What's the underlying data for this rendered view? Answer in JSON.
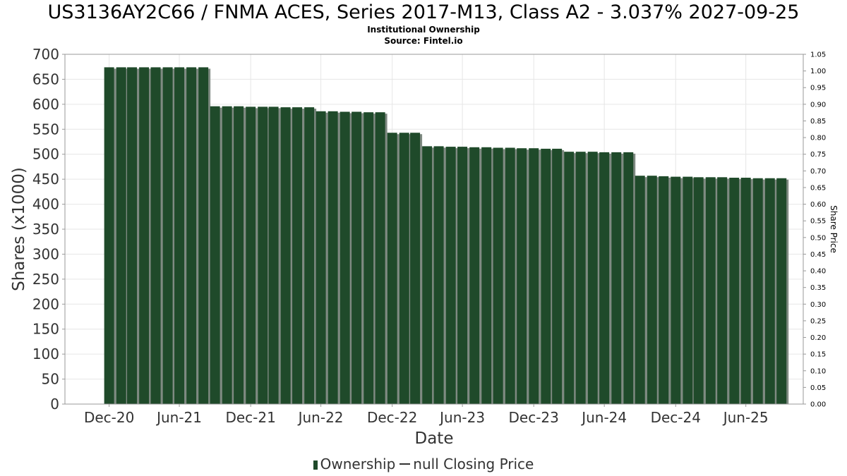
{
  "title": "US3136AY2C66 / FNMA ACES, Series 2017-M13, Class A2 - 3.037% 2027-09-25",
  "subtitle_1": "Institutional Ownership",
  "subtitle_2": "Source: Fintel.io",
  "legend": {
    "ownership": "Ownership",
    "price": "null Closing Price"
  },
  "colors": {
    "bar": "#1f4a2a",
    "bar_shadow": "#7f8a82",
    "grid": "#e6e6e6",
    "axis_text": "#333333"
  },
  "chart_data": {
    "type": "bar",
    "xlabel": "Date",
    "ylabel": "Shares (x1000)",
    "y2label": "Share Price",
    "ylim": [
      0,
      700
    ],
    "y2lim": [
      0,
      1.05
    ],
    "grid": true,
    "legend_position": "bottom",
    "yticks": [
      "0",
      "50",
      "100",
      "150",
      "200",
      "250",
      "300",
      "350",
      "400",
      "450",
      "500",
      "550",
      "600",
      "650",
      "700"
    ],
    "y2ticks": [
      "0.00",
      "0.05",
      "0.10",
      "0.15",
      "0.20",
      "0.25",
      "0.30",
      "0.35",
      "0.40",
      "0.45",
      "0.50",
      "0.55",
      "0.60",
      "0.65",
      "0.70",
      "0.75",
      "0.80",
      "0.85",
      "0.90",
      "0.95",
      "1.00",
      "1.05"
    ],
    "xticks": [
      {
        "label": "Dec-20",
        "date": "2020-12-31"
      },
      {
        "label": "Jun-21",
        "date": "2021-06-30"
      },
      {
        "label": "Dec-21",
        "date": "2021-12-31"
      },
      {
        "label": "Jun-22",
        "date": "2022-06-30"
      },
      {
        "label": "Dec-22",
        "date": "2022-12-31"
      },
      {
        "label": "Jun-23",
        "date": "2023-06-30"
      },
      {
        "label": "Dec-23",
        "date": "2023-12-31"
      },
      {
        "label": "Jun-24",
        "date": "2024-06-30"
      },
      {
        "label": "Dec-24",
        "date": "2024-12-31"
      },
      {
        "label": "Jun-25",
        "date": "2025-06-30"
      }
    ],
    "x_range": [
      "2020-09-08",
      "2025-11-25"
    ],
    "series": [
      {
        "name": "Ownership",
        "points": [
          {
            "x": "2020-12-31",
            "y": 674
          },
          {
            "x": "2021-01-31",
            "y": 674
          },
          {
            "x": "2021-02-28",
            "y": 674
          },
          {
            "x": "2021-03-31",
            "y": 674
          },
          {
            "x": "2021-04-30",
            "y": 674
          },
          {
            "x": "2021-05-31",
            "y": 674
          },
          {
            "x": "2021-06-30",
            "y": 674
          },
          {
            "x": "2021-07-31",
            "y": 674
          },
          {
            "x": "2021-08-31",
            "y": 674
          },
          {
            "x": "2021-09-30",
            "y": 596
          },
          {
            "x": "2021-10-31",
            "y": 596
          },
          {
            "x": "2021-11-30",
            "y": 596
          },
          {
            "x": "2021-12-31",
            "y": 595
          },
          {
            "x": "2022-01-31",
            "y": 595
          },
          {
            "x": "2022-02-28",
            "y": 595
          },
          {
            "x": "2022-03-31",
            "y": 594
          },
          {
            "x": "2022-04-30",
            "y": 594
          },
          {
            "x": "2022-05-31",
            "y": 594
          },
          {
            "x": "2022-06-30",
            "y": 586
          },
          {
            "x": "2022-07-31",
            "y": 586
          },
          {
            "x": "2022-08-31",
            "y": 585
          },
          {
            "x": "2022-09-30",
            "y": 585
          },
          {
            "x": "2022-10-31",
            "y": 584
          },
          {
            "x": "2022-11-30",
            "y": 584
          },
          {
            "x": "2022-12-31",
            "y": 543
          },
          {
            "x": "2023-01-31",
            "y": 543
          },
          {
            "x": "2023-02-28",
            "y": 543
          },
          {
            "x": "2023-03-31",
            "y": 516
          },
          {
            "x": "2023-04-30",
            "y": 516
          },
          {
            "x": "2023-05-31",
            "y": 515
          },
          {
            "x": "2023-06-30",
            "y": 515
          },
          {
            "x": "2023-07-31",
            "y": 514
          },
          {
            "x": "2023-08-31",
            "y": 514
          },
          {
            "x": "2023-09-30",
            "y": 513
          },
          {
            "x": "2023-10-31",
            "y": 513
          },
          {
            "x": "2023-11-30",
            "y": 512
          },
          {
            "x": "2023-12-31",
            "y": 512
          },
          {
            "x": "2024-01-31",
            "y": 511
          },
          {
            "x": "2024-02-29",
            "y": 511
          },
          {
            "x": "2024-03-31",
            "y": 505
          },
          {
            "x": "2024-04-30",
            "y": 505
          },
          {
            "x": "2024-05-31",
            "y": 505
          },
          {
            "x": "2024-06-30",
            "y": 504
          },
          {
            "x": "2024-07-31",
            "y": 504
          },
          {
            "x": "2024-08-31",
            "y": 504
          },
          {
            "x": "2024-09-30",
            "y": 457
          },
          {
            "x": "2024-10-31",
            "y": 457
          },
          {
            "x": "2024-11-30",
            "y": 456
          },
          {
            "x": "2024-12-31",
            "y": 455
          },
          {
            "x": "2025-01-31",
            "y": 455
          },
          {
            "x": "2025-02-28",
            "y": 454
          },
          {
            "x": "2025-03-31",
            "y": 454
          },
          {
            "x": "2025-04-30",
            "y": 454
          },
          {
            "x": "2025-05-31",
            "y": 453
          },
          {
            "x": "2025-06-30",
            "y": 453
          },
          {
            "x": "2025-07-31",
            "y": 452
          },
          {
            "x": "2025-08-31",
            "y": 452
          },
          {
            "x": "2025-09-30",
            "y": 452
          }
        ]
      }
    ]
  }
}
